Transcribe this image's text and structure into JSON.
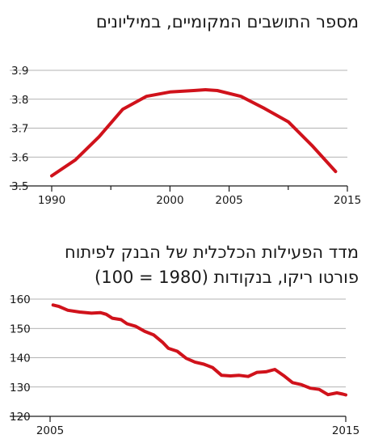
{
  "chart_data": [
    {
      "type": "line",
      "title": "מספר התושבים המקומיים, במיליונים",
      "xlabel": "",
      "ylabel": "",
      "x": [
        1990,
        1992,
        1994,
        1996,
        1998,
        2000,
        2002,
        2003,
        2004,
        2006,
        2008,
        2010,
        2012,
        2014
      ],
      "series": [
        {
          "values": [
            3.535,
            3.59,
            3.67,
            3.765,
            3.81,
            3.825,
            3.83,
            3.833,
            3.83,
            3.81,
            3.768,
            3.722,
            3.64,
            3.55
          ]
        }
      ],
      "xlim": [
        1990,
        2015
      ],
      "ylim": [
        3.5,
        3.9
      ],
      "yticks": [
        "3.5",
        "3.6",
        "3.7",
        "3.8",
        "3.9"
      ],
      "xticks_major": [
        1990,
        2000,
        2005,
        2015
      ],
      "xticks_minor": [
        1995,
        2010
      ],
      "line_color": "#d0121b",
      "grid": "horizontal"
    },
    {
      "type": "line",
      "title": "מדד הפעילות הכלכלית של הבנק לפיתוח",
      "subtitle": "פורטו ריקו, בנקודות (1980 = 100)",
      "xlabel": "",
      "ylabel": "",
      "x": [
        2005.1,
        2005.3,
        2005.6,
        2006.0,
        2006.4,
        2006.7,
        2006.9,
        2007.1,
        2007.4,
        2007.6,
        2007.9,
        2008.2,
        2008.5,
        2008.8,
        2009.0,
        2009.3,
        2009.6,
        2009.9,
        2010.2,
        2010.5,
        2010.8,
        2011.1,
        2011.4,
        2011.7,
        2012.0,
        2012.3,
        2012.6,
        2012.9,
        2013.2,
        2013.5,
        2013.8,
        2014.1,
        2014.4,
        2014.7,
        2014.9,
        2015.0
      ],
      "series": [
        {
          "values": [
            158.0,
            157.5,
            156.2,
            155.6,
            155.2,
            155.4,
            154.8,
            153.5,
            153.0,
            151.6,
            150.7,
            149.0,
            147.8,
            145.3,
            143.2,
            142.2,
            139.8,
            138.5,
            137.8,
            136.6,
            134.0,
            133.8,
            134.0,
            133.6,
            135.0,
            135.2,
            136.0,
            133.9,
            131.5,
            130.8,
            129.6,
            129.2,
            127.4,
            128.0,
            127.6,
            127.3
          ]
        }
      ],
      "xlim": [
        2005,
        2015
      ],
      "ylim": [
        120,
        160
      ],
      "yticks": [
        "120",
        "130",
        "140",
        "150",
        "160"
      ],
      "xticks_major": [
        2005,
        2015
      ],
      "line_color": "#d0121b",
      "grid": "horizontal"
    }
  ]
}
